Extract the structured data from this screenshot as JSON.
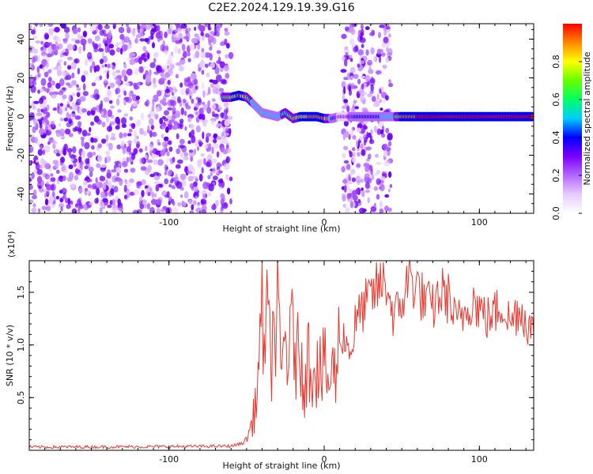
{
  "title": "C2E2.2024.129.19.39.G16",
  "chart_data": [
    {
      "type": "heatmap",
      "xlabel": "Height of straight line (km)",
      "ylabel": "Frequency (Hz)",
      "xlim": [
        -190,
        135
      ],
      "ylim": [
        -50,
        48
      ],
      "xticks": [
        -100,
        0,
        100
      ],
      "yticks": [
        -40,
        -20,
        0,
        20,
        40
      ],
      "grid": false,
      "colorbar": {
        "label": "Normalized spectral amplitude",
        "range": [
          0,
          1
        ],
        "ticks": [
          0.0,
          0.2,
          0.4,
          0.6,
          0.8
        ],
        "colors": [
          "#ffffff",
          "#e6ccff",
          "#b366ff",
          "#7a00ff",
          "#0000ff",
          "#00ccff",
          "#00ff66",
          "#66ff00",
          "#ffff00",
          "#ff8800",
          "#ff0000"
        ]
      },
      "noise_regions": [
        {
          "x": [
            -190,
            -60
          ],
          "y": [
            -50,
            48
          ],
          "level": 0.25
        },
        {
          "x": [
            12,
            43
          ],
          "y": [
            -50,
            48
          ],
          "level": 0.25
        }
      ],
      "signal_track": {
        "x": [
          -65,
          -60,
          -55,
          -50,
          -45,
          -40,
          -35,
          -30,
          -25,
          -20,
          -15,
          -10,
          -5,
          0,
          5,
          10,
          45,
          50,
          60,
          70,
          80,
          90,
          100,
          110,
          120,
          135
        ],
        "y": [
          10,
          10,
          11,
          10,
          6,
          2,
          1,
          0,
          2,
          -1,
          0,
          0,
          0,
          -1,
          -1,
          0,
          0,
          0,
          0,
          0,
          0,
          0,
          0,
          0,
          0,
          0
        ],
        "amplitude": [
          0.6,
          0.75,
          0.9,
          0.7,
          0.5,
          0.55,
          0.45,
          0.5,
          0.6,
          0.7,
          0.8,
          0.85,
          0.9,
          0.85,
          0.4,
          0.3,
          0.5,
          0.9,
          0.95,
          0.95,
          0.95,
          0.95,
          0.95,
          0.95,
          0.95,
          0.95
        ]
      }
    },
    {
      "type": "line",
      "xlabel": "Height of straight line (km)",
      "ylabel": "SNR (10 * v/v)",
      "y_multiplier": "(x10⁴)",
      "xlim": [
        -190,
        135
      ],
      "ylim": [
        0,
        18000
      ],
      "xticks": [
        -100,
        0,
        100
      ],
      "yticks": [
        0.5,
        1.0,
        1.5
      ],
      "ytick_labels": [
        "0.5",
        "1.0",
        "1.5"
      ],
      "grid": false,
      "color": "#e8392f",
      "series": [
        {
          "x": [
            -190,
            -100,
            -60,
            -52,
            -48,
            -45,
            -42,
            -40,
            -38,
            -35,
            -32,
            -30,
            -28,
            -25,
            -22,
            -20,
            -17,
            -15,
            -12,
            -10,
            -7,
            -5,
            -2,
            0,
            3,
            5,
            8,
            10,
            12,
            15,
            18,
            20,
            25,
            30,
            35,
            40,
            45,
            50,
            55,
            60,
            65,
            70,
            75,
            80,
            85,
            90,
            95,
            100,
            105,
            110,
            115,
            120,
            125,
            130,
            135
          ],
          "y": [
            300,
            350,
            400,
            700,
            1800,
            3500,
            8000,
            12000,
            13000,
            9000,
            11500,
            12500,
            7000,
            10500,
            9000,
            11500,
            8500,
            10000,
            6000,
            9500,
            8000,
            8500,
            7000,
            7800,
            6500,
            7000,
            8000,
            10500,
            11000,
            10000,
            9500,
            12000,
            13500,
            14500,
            15500,
            16000,
            12500,
            14000,
            16500,
            15500,
            14000,
            13500,
            15000,
            14500,
            12000,
            13000,
            14500,
            13500,
            12500,
            13000,
            14000,
            12000,
            13500,
            12500,
            11000
          ]
        }
      ]
    }
  ]
}
